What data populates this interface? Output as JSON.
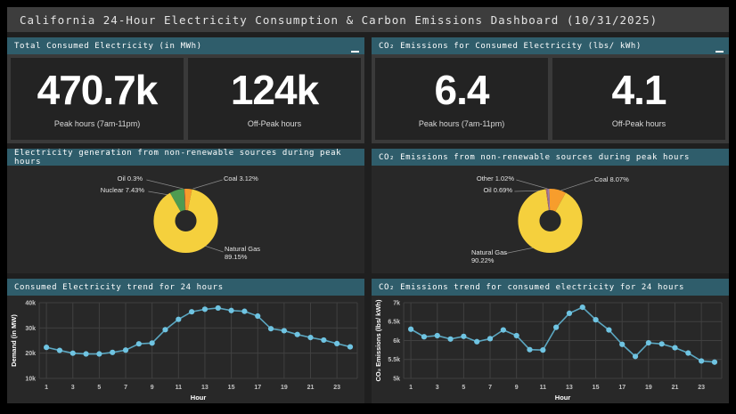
{
  "title_bar": {
    "title": "California 24-Hour Electricity Consumption & Carbon Emissions Dashboard (10/31/2025)"
  },
  "kpi_electricity": {
    "header": "Total Consumed Electricity (in MWh)",
    "tiles": [
      {
        "value": "470.7k",
        "caption": "Peak hours (7am-11pm)"
      },
      {
        "value": "124k",
        "caption": "Off-Peak hours"
      }
    ]
  },
  "kpi_emissions": {
    "header": "CO₂ Emissions for Consumed Electricity (lbs/ kWh)",
    "tiles": [
      {
        "value": "6.4",
        "caption": "Peak hours (7am-11pm)"
      },
      {
        "value": "4.1",
        "caption": "Off-Peak hours"
      }
    ]
  },
  "chart_data": [
    {
      "type": "pie",
      "title": "Electricity generation from non-renewable sources during peak hours",
      "legend_position": "outside-labels",
      "slices": [
        {
          "label": "Coal",
          "pct": 3.12,
          "color": "#f79d2c"
        },
        {
          "label": "Natural Gas",
          "pct": 89.15,
          "color": "#f5d03d"
        },
        {
          "label": "Nuclear",
          "pct": 7.43,
          "color": "#4e9b51"
        },
        {
          "label": "Oil",
          "pct": 0.3,
          "color": "#e0593f"
        }
      ],
      "labels": [
        {
          "line1": "Oil 0.3%"
        },
        {
          "line1": "Nuclear 7.43%"
        },
        {
          "line1": "Coal 3.12%"
        },
        {
          "line1": "Natural Gas",
          "line2": "89.15%"
        }
      ]
    },
    {
      "type": "pie",
      "title": "CO₂ Emissions from non-renewable sources during peak hours",
      "legend_position": "outside-labels",
      "slices": [
        {
          "label": "Coal",
          "pct": 8.07,
          "color": "#f79d2c"
        },
        {
          "label": "Natural Gas",
          "pct": 90.22,
          "color": "#f5d03d"
        },
        {
          "label": "Oil",
          "pct": 0.69,
          "color": "#b06a76"
        },
        {
          "label": "Other",
          "pct": 1.02,
          "color": "#9b7fa8"
        }
      ],
      "labels": [
        {
          "line1": "Other 1.02%"
        },
        {
          "line1": "Oil 0.69%"
        },
        {
          "line1": "Coal 8.07%"
        },
        {
          "line1": "Natural Gas",
          "line2": "90.22%"
        }
      ]
    },
    {
      "type": "line",
      "title": "Consumed Electricity trend for 24 hours",
      "xlabel": "Hour",
      "ylabel": "Demand (in MW)",
      "x": [
        1,
        2,
        3,
        4,
        5,
        6,
        7,
        8,
        9,
        10,
        11,
        12,
        13,
        14,
        15,
        16,
        17,
        18,
        19,
        20,
        21,
        22,
        23,
        24
      ],
      "values": [
        22300,
        21100,
        20000,
        19700,
        19700,
        20300,
        21200,
        23700,
        24000,
        29300,
        33400,
        36400,
        37400,
        37900,
        36900,
        36600,
        34700,
        29700,
        28900,
        27400,
        26200,
        25200,
        23800,
        22500
      ],
      "ylim": [
        10000,
        40000
      ],
      "yticks": [
        {
          "v": 10000,
          "label": "10k"
        },
        {
          "v": 20000,
          "label": "20k"
        },
        {
          "v": 30000,
          "label": "30k"
        },
        {
          "v": 40000,
          "label": "40k"
        }
      ],
      "xticks": [
        1,
        3,
        5,
        7,
        9,
        11,
        13,
        15,
        17,
        19,
        21,
        23
      ],
      "grid": true,
      "line_color": "#5ba6c0",
      "marker_color": "#6fc4e2"
    },
    {
      "type": "line",
      "title": "CO₂ Emissions trend for consumed electricity for 24 hours",
      "xlabel": "Hour",
      "ylabel": "CO₂ Emissions (lbs/ kWh)",
      "x": [
        1,
        2,
        3,
        4,
        5,
        6,
        7,
        8,
        9,
        10,
        11,
        12,
        13,
        14,
        15,
        16,
        17,
        18,
        19,
        20,
        21,
        22,
        23,
        24
      ],
      "values": [
        6300,
        6100,
        6130,
        6040,
        6110,
        5970,
        6050,
        6280,
        6130,
        5760,
        5750,
        6350,
        6720,
        6880,
        6550,
        6280,
        5900,
        5580,
        5940,
        5910,
        5810,
        5670,
        5460,
        5430
      ],
      "ylim": [
        5000,
        7000
      ],
      "yticks": [
        {
          "v": 5000,
          "label": "5k"
        },
        {
          "v": 5500,
          "label": "5.5k"
        },
        {
          "v": 6000,
          "label": "6k"
        },
        {
          "v": 6500,
          "label": "6.5k"
        },
        {
          "v": 7000,
          "label": "7k"
        }
      ],
      "xticks": [
        1,
        3,
        5,
        7,
        9,
        11,
        13,
        15,
        17,
        19,
        21,
        23
      ],
      "grid": true,
      "line_color": "#5ba6c0",
      "marker_color": "#6fc4e2"
    }
  ],
  "colors": {
    "panel_header": "#2f5d6b",
    "panel_body": "#282828",
    "title_bar": "#3d3d3d",
    "kpi_value_text": "#ffffff"
  }
}
